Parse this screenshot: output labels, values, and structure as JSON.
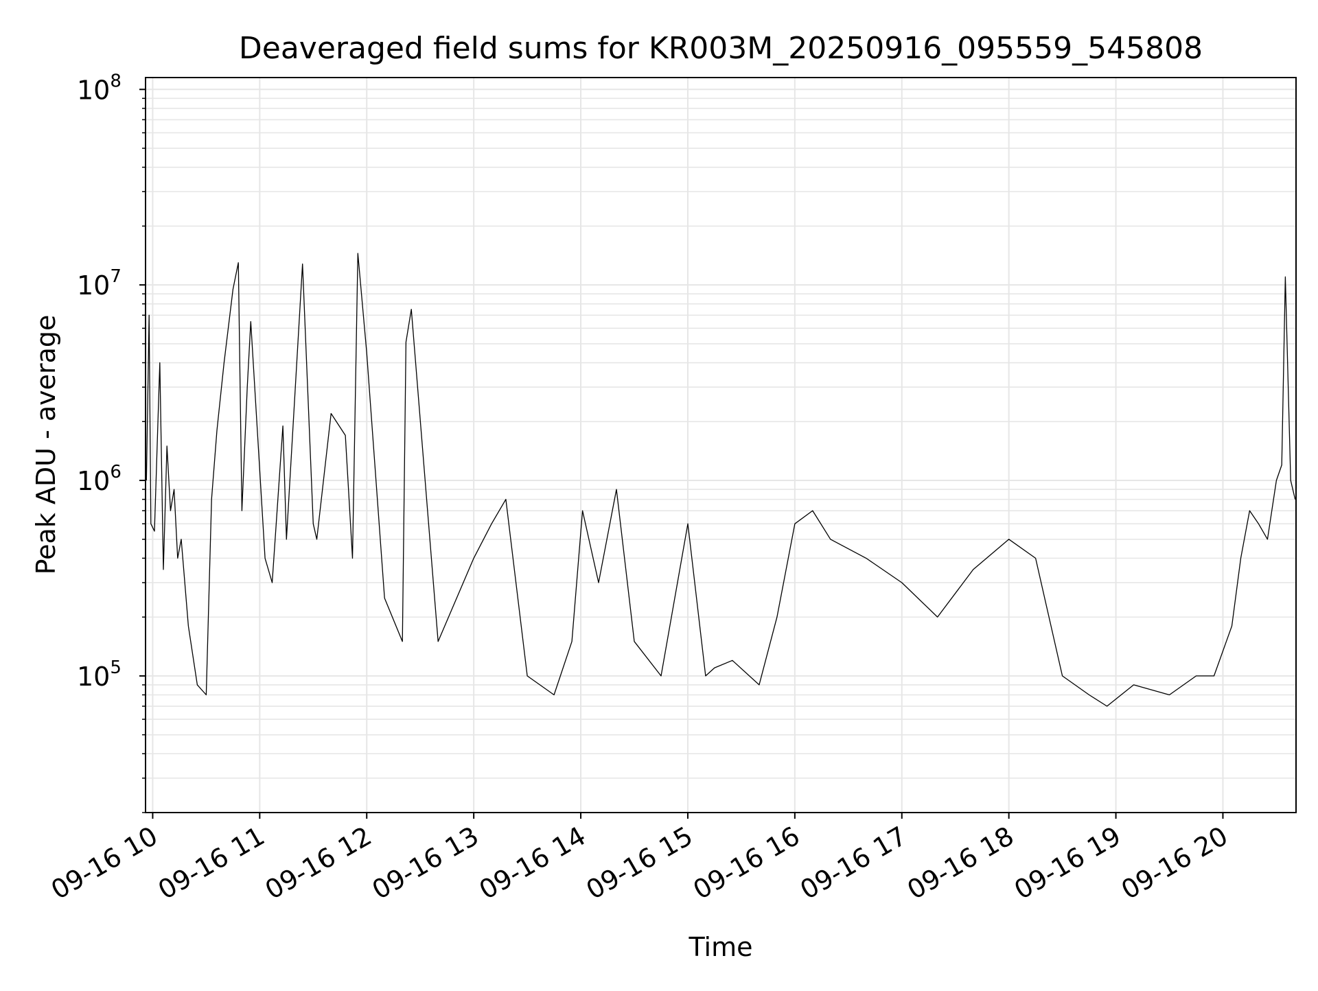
{
  "chart_data": {
    "type": "line",
    "title": "Deaveraged field sums for KR003M_20250916_095559_545808",
    "xlabel": "Time",
    "ylabel": "Peak ADU - average",
    "y_scale": "log",
    "ylim": [
      20000,
      115000000
    ],
    "xlim": [
      "2025-09-16T09:55:59",
      "2025-09-16T20:41:00"
    ],
    "x_ticks": [
      "09-16 10",
      "09-16 11",
      "09-16 12",
      "09-16 13",
      "09-16 14",
      "09-16 15",
      "09-16 16",
      "09-16 17",
      "09-16 18",
      "09-16 19",
      "09-16 20"
    ],
    "x_tick_times": [
      "2025-09-16T10:00:00",
      "2025-09-16T11:00:00",
      "2025-09-16T12:00:00",
      "2025-09-16T13:00:00",
      "2025-09-16T14:00:00",
      "2025-09-16T15:00:00",
      "2025-09-16T16:00:00",
      "2025-09-16T17:00:00",
      "2025-09-16T18:00:00",
      "2025-09-16T19:00:00",
      "2025-09-16T20:00:00"
    ],
    "y_ticks": [
      {
        "value": 100000,
        "base": "10",
        "exp": "5"
      },
      {
        "value": 1000000,
        "base": "10",
        "exp": "6"
      },
      {
        "value": 10000000,
        "base": "10",
        "exp": "7"
      },
      {
        "value": 100000000,
        "base": "10",
        "exp": "8"
      }
    ],
    "grid": true,
    "series": [
      {
        "color": "#000000",
        "x": [
          "2025-09-16T09:56:30",
          "2025-09-16T09:58:00",
          "2025-09-16T09:59:00",
          "2025-09-16T10:01:00",
          "2025-09-16T10:04:00",
          "2025-09-16T10:06:00",
          "2025-09-16T10:08:00",
          "2025-09-16T10:10:00",
          "2025-09-16T10:12:00",
          "2025-09-16T10:14:00",
          "2025-09-16T10:16:00",
          "2025-09-16T10:20:00",
          "2025-09-16T10:25:00",
          "2025-09-16T10:30:00",
          "2025-09-16T10:33:00",
          "2025-09-16T10:36:00",
          "2025-09-16T10:40:00",
          "2025-09-16T10:45:00",
          "2025-09-16T10:48:00",
          "2025-09-16T10:50:00",
          "2025-09-16T10:53:00",
          "2025-09-16T10:55:00",
          "2025-09-16T11:03:00",
          "2025-09-16T11:07:00",
          "2025-09-16T11:13:00",
          "2025-09-16T11:15:00",
          "2025-09-16T11:24:00",
          "2025-09-16T11:30:00",
          "2025-09-16T11:32:00",
          "2025-09-16T11:40:00",
          "2025-09-16T11:48:00",
          "2025-09-16T11:52:00",
          "2025-09-16T11:55:00",
          "2025-09-16T12:00:00",
          "2025-09-16T12:10:00",
          "2025-09-16T12:20:00",
          "2025-09-16T12:22:00",
          "2025-09-16T12:25:00",
          "2025-09-16T12:40:00",
          "2025-09-16T13:00:00",
          "2025-09-16T13:10:00",
          "2025-09-16T13:18:00",
          "2025-09-16T13:30:00",
          "2025-09-16T13:45:00",
          "2025-09-16T13:55:00",
          "2025-09-16T14:01:00",
          "2025-09-16T14:10:00",
          "2025-09-16T14:20:00",
          "2025-09-16T14:30:00",
          "2025-09-16T14:45:00",
          "2025-09-16T15:00:00",
          "2025-09-16T15:10:00",
          "2025-09-16T15:15:00",
          "2025-09-16T15:25:00",
          "2025-09-16T15:40:00",
          "2025-09-16T15:50:00",
          "2025-09-16T16:00:00",
          "2025-09-16T16:10:00",
          "2025-09-16T16:20:00",
          "2025-09-16T16:40:00",
          "2025-09-16T17:00:00",
          "2025-09-16T17:20:00",
          "2025-09-16T17:40:00",
          "2025-09-16T18:00:00",
          "2025-09-16T18:15:00",
          "2025-09-16T18:30:00",
          "2025-09-16T18:45:00",
          "2025-09-16T18:55:00",
          "2025-09-16T19:10:00",
          "2025-09-16T19:30:00",
          "2025-09-16T19:45:00",
          "2025-09-16T19:55:00",
          "2025-09-16T20:05:00",
          "2025-09-16T20:10:00",
          "2025-09-16T20:15:00",
          "2025-09-16T20:20:00",
          "2025-09-16T20:25:00",
          "2025-09-16T20:30:00",
          "2025-09-16T20:33:00",
          "2025-09-16T20:35:00",
          "2025-09-16T20:38:00",
          "2025-09-16T20:40:30"
        ],
        "y": [
          1000000,
          7000000,
          600000,
          550000,
          4000000,
          350000,
          1500000,
          700000,
          900000,
          400000,
          500000,
          180000,
          90000,
          80000,
          800000,
          1800000,
          4000000,
          9500000,
          13000000,
          700000,
          3000000,
          6500000,
          400000,
          300000,
          1900000,
          500000,
          12800000,
          600000,
          500000,
          2200000,
          1700000,
          400000,
          14500000,
          4500000,
          250000,
          150000,
          5100000,
          7500000,
          150000,
          400000,
          600000,
          800000,
          100000,
          80000,
          150000,
          700000,
          300000,
          900000,
          150000,
          100000,
          600000,
          100000,
          110000,
          120000,
          90000,
          200000,
          600000,
          700000,
          500000,
          400000,
          300000,
          200000,
          350000,
          500000,
          400000,
          100000,
          80000,
          70000,
          90000,
          80000,
          100000,
          100000,
          180000,
          400000,
          700000,
          600000,
          500000,
          1000000,
          1200000,
          11000000,
          1000000,
          800000
        ]
      }
    ]
  }
}
